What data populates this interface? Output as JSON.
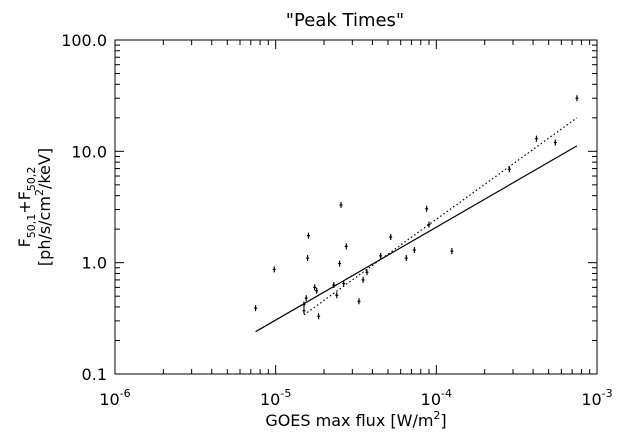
{
  "chart_data": {
    "type": "scatter",
    "title": "\"Peak Times\"",
    "xlabel": {
      "text": "GOES max flux [W/m",
      "sup": "2",
      "tail": "]"
    },
    "ylabel": {
      "line1": {
        "F": "F",
        "sub1": "50,1",
        "plus": "+F",
        "sub2": "50,2"
      },
      "line2": {
        "pre": "[ph/s/cm",
        "sup": "2",
        "post": "/keV]"
      }
    },
    "xscale": "log",
    "yscale": "log",
    "xlim": [
      1e-06,
      0.001
    ],
    "ylim": [
      0.1,
      100
    ],
    "x_tick_labels": [
      {
        "value": 1e-06,
        "base": "10",
        "exp": "-6"
      },
      {
        "value": 1e-05,
        "base": "10",
        "exp": "-5"
      },
      {
        "value": 0.0001,
        "base": "10",
        "exp": "-4"
      },
      {
        "value": 0.001,
        "base": "10",
        "exp": "-3"
      }
    ],
    "y_tick_labels": [
      {
        "value": 0.1,
        "label": "0.1"
      },
      {
        "value": 1,
        "label": "1.0"
      },
      {
        "value": 10,
        "label": "10.0"
      },
      {
        "value": 100,
        "label": "100.0"
      }
    ],
    "grid": false,
    "points": [
      [
        7.5e-06,
        0.39
      ],
      [
        9.8e-06,
        0.87
      ],
      [
        1.5e-05,
        0.37
      ],
      [
        1.5e-05,
        0.42
      ],
      [
        1.55e-05,
        0.48
      ],
      [
        1.58e-05,
        1.1
      ],
      [
        1.6e-05,
        1.75
      ],
      [
        1.75e-05,
        0.6
      ],
      [
        1.8e-05,
        0.56
      ],
      [
        1.85e-05,
        0.33
      ],
      [
        2.3e-05,
        0.63
      ],
      [
        2.4e-05,
        0.51
      ],
      [
        2.5e-05,
        0.98
      ],
      [
        2.55e-05,
        3.3
      ],
      [
        2.65e-05,
        0.65
      ],
      [
        2.75e-05,
        1.4
      ],
      [
        3.3e-05,
        0.45
      ],
      [
        3.5e-05,
        0.7
      ],
      [
        3.7e-05,
        0.82
      ],
      [
        4.5e-05,
        1.15
      ],
      [
        5.2e-05,
        1.7
      ],
      [
        6.5e-05,
        1.1
      ],
      [
        7.3e-05,
        1.3
      ],
      [
        8.7e-05,
        3.05
      ],
      [
        9e-05,
        2.2
      ],
      [
        0.000125,
        1.27
      ],
      [
        0.000285,
        6.9
      ],
      [
        0.00042,
        13.0
      ],
      [
        0.00055,
        12.0
      ],
      [
        0.00075,
        30.0
      ]
    ],
    "lines": [
      {
        "style": "solid",
        "x": [
          7.5e-06,
          0.00075
        ],
        "y": [
          0.24,
          11.2
        ]
      },
      {
        "style": "dotted",
        "x": [
          1.5e-05,
          0.00075
        ],
        "y": [
          0.34,
          20.0
        ]
      }
    ]
  }
}
